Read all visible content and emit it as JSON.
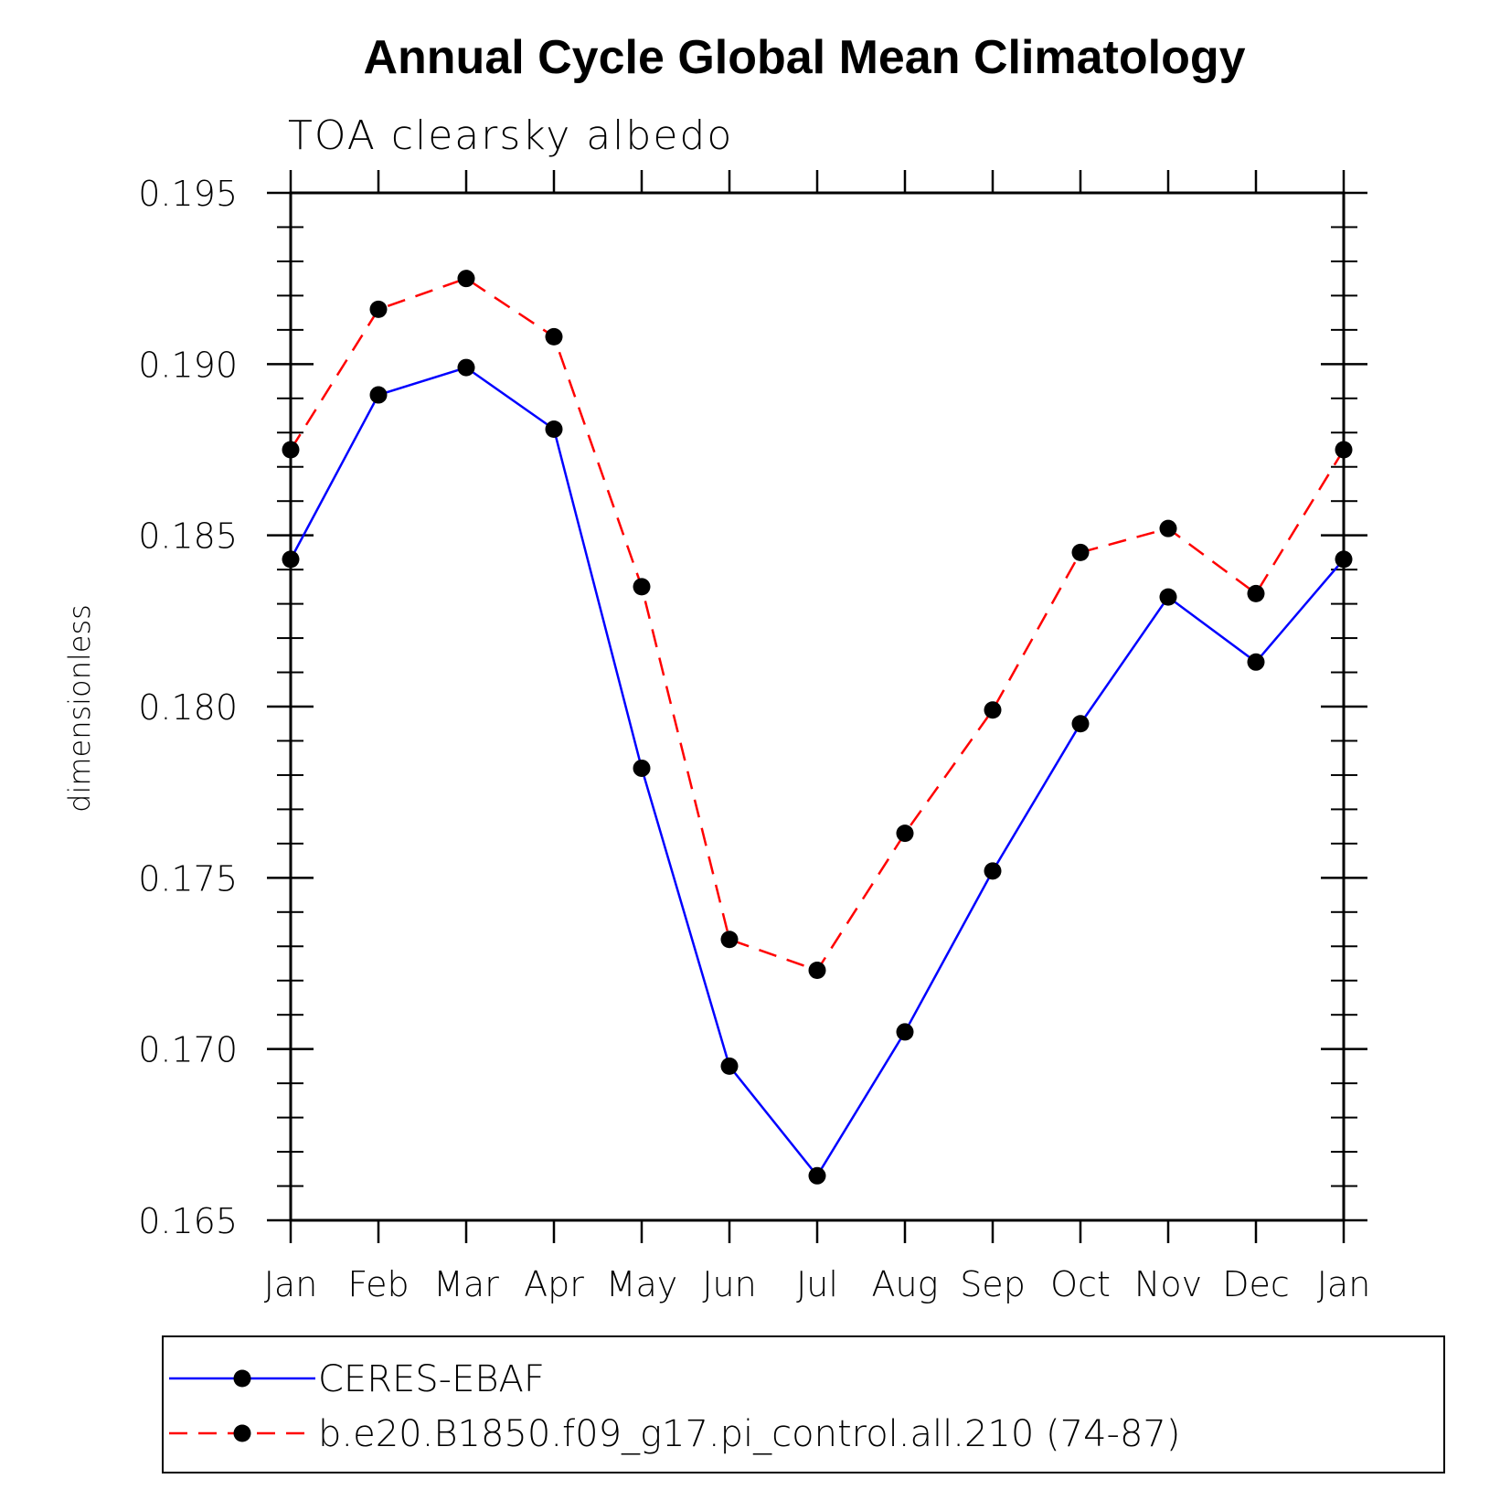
{
  "chart_data": {
    "type": "line",
    "title": "Annual Cycle Global Mean Climatology",
    "subtitle": "TOA clearsky albedo",
    "ylabel": "dimensionless",
    "xlabel": "",
    "categories": [
      "Jan",
      "Feb",
      "Mar",
      "Apr",
      "May",
      "Jun",
      "Jul",
      "Aug",
      "Sep",
      "Oct",
      "Nov",
      "Dec",
      "Jan"
    ],
    "ylim": [
      0.165,
      0.195
    ],
    "yticks": [
      0.165,
      0.17,
      0.175,
      0.18,
      0.185,
      0.19,
      0.195
    ],
    "ytick_labels": [
      "0.165",
      "0.170",
      "0.175",
      "0.180",
      "0.185",
      "0.190",
      "0.195"
    ],
    "minor_ticks_per_major": 5,
    "grid": false,
    "legend_position": "bottom",
    "series": [
      {
        "name": "CERES-EBAF",
        "color": "#0000ff",
        "line_style": "solid",
        "marker": "filled-circle",
        "marker_color": "#000000",
        "values": [
          0.1843,
          0.1891,
          0.1899,
          0.1881,
          0.1782,
          0.1695,
          0.1663,
          0.1705,
          0.1752,
          0.1795,
          0.1832,
          0.1813,
          0.1843
        ]
      },
      {
        "name": "b.e20.B1850.f09_g17.pi_control.all.210 (74-87)",
        "color": "#ff0000",
        "line_style": "dashed",
        "marker": "filled-circle",
        "marker_color": "#000000",
        "values": [
          0.1875,
          0.1916,
          0.1925,
          0.1908,
          0.1835,
          0.1732,
          0.1723,
          0.1763,
          0.1799,
          0.1845,
          0.1852,
          0.1833,
          0.1875
        ]
      }
    ]
  }
}
